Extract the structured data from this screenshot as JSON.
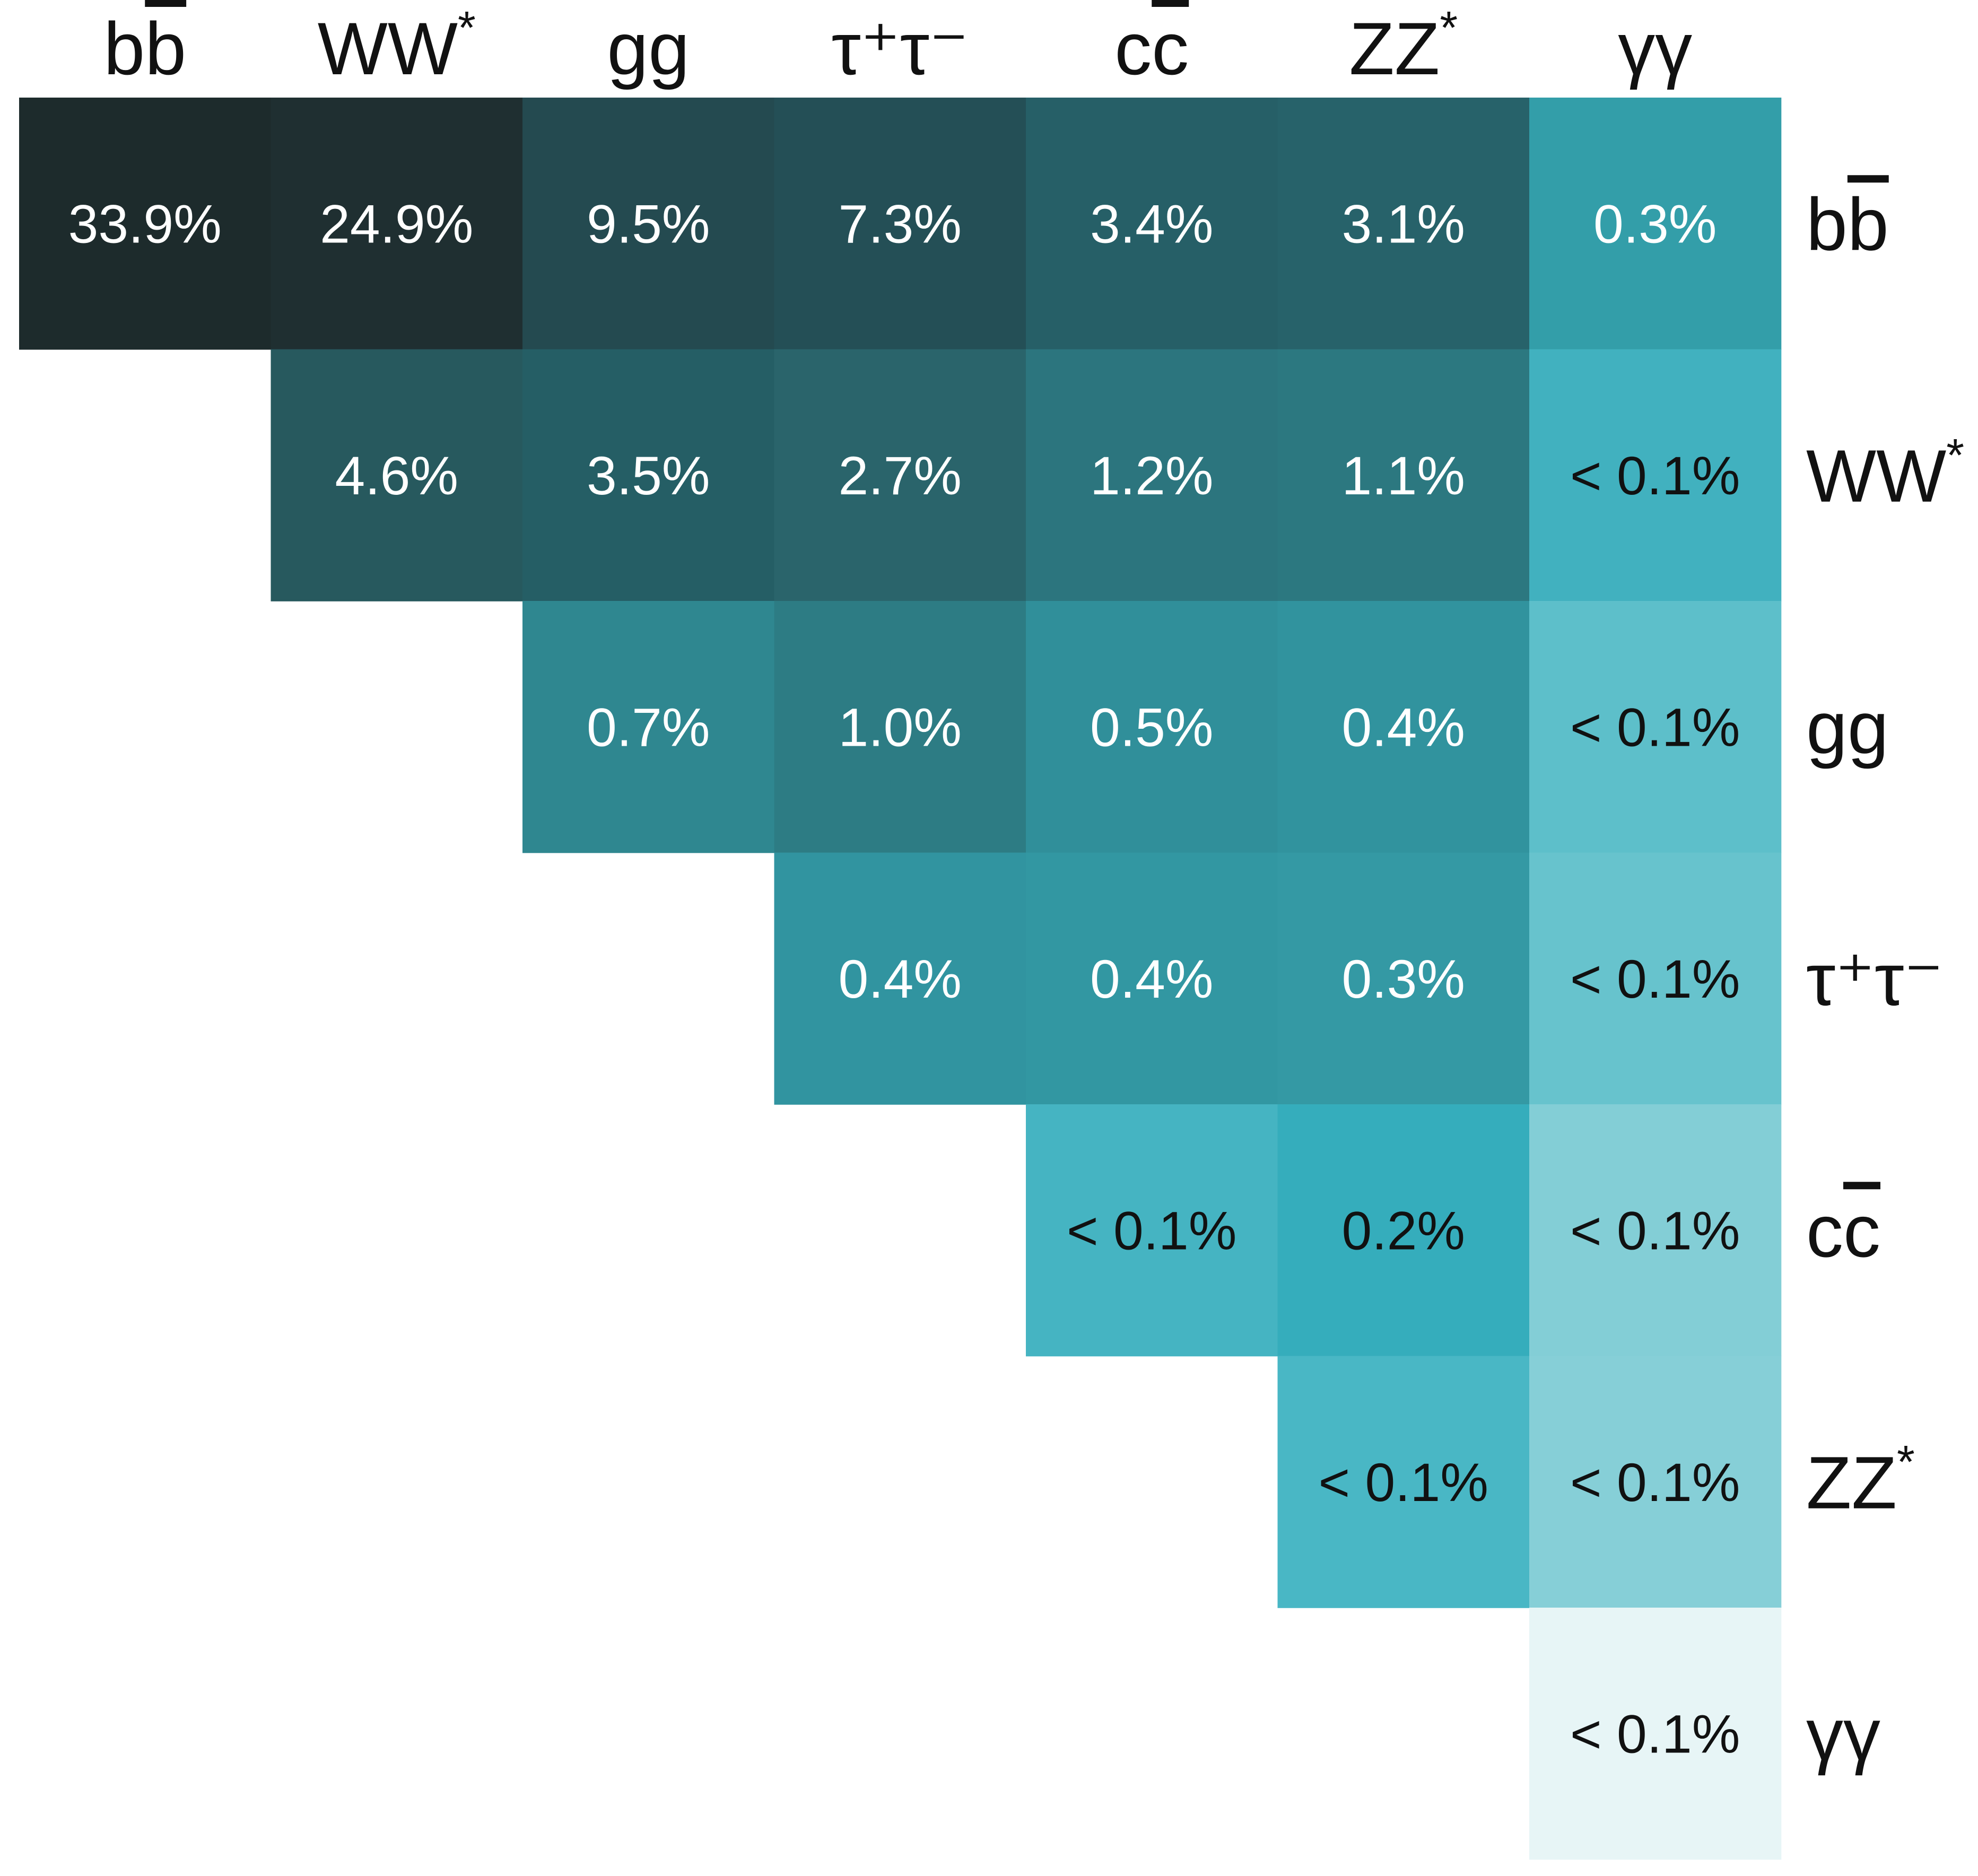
{
  "chart_data": {
    "type": "heatmap",
    "title": "",
    "xlabel": "",
    "ylabel": "",
    "grid": false,
    "legend": "none",
    "categories": [
      {
        "id": "bb",
        "base": "b",
        "bar_base": "b",
        "mark": ""
      },
      {
        "id": "ww",
        "base": "WW",
        "bar_base": "",
        "mark": "*"
      },
      {
        "id": "gg",
        "base": "gg",
        "bar_base": "",
        "mark": ""
      },
      {
        "id": "tautau",
        "base": "τ⁺τ⁻",
        "bar_base": "",
        "mark": ""
      },
      {
        "id": "cc",
        "base": "c",
        "bar_base": "c",
        "mark": ""
      },
      {
        "id": "zz",
        "base": "ZZ",
        "bar_base": "",
        "mark": "*"
      },
      {
        "id": "gammagamma",
        "base": "γγ",
        "bar_base": "",
        "mark": ""
      }
    ],
    "cells": [
      {
        "row": 0,
        "col": 0,
        "label": "33.9%",
        "value": 33.9,
        "color": "#1d2b2c",
        "text_color": "#ffffff"
      },
      {
        "row": 0,
        "col": 1,
        "label": "24.9%",
        "value": 24.9,
        "color": "#1f2f31",
        "text_color": "#ffffff"
      },
      {
        "row": 0,
        "col": 2,
        "label": "9.5%",
        "value": 9.5,
        "color": "#244a50",
        "text_color": "#ffffff"
      },
      {
        "row": 0,
        "col": 3,
        "label": "7.3%",
        "value": 7.3,
        "color": "#244f56",
        "text_color": "#ffffff"
      },
      {
        "row": 0,
        "col": 4,
        "label": "3.4%",
        "value": 3.4,
        "color": "#265f67",
        "text_color": "#ffffff"
      },
      {
        "row": 0,
        "col": 5,
        "label": "3.1%",
        "value": 3.1,
        "color": "#27626a",
        "text_color": "#ffffff"
      },
      {
        "row": 0,
        "col": 6,
        "label": "0.3%",
        "value": 0.3,
        "color": "#339ea9",
        "text_color": "#ffffff"
      },
      {
        "row": 1,
        "col": 1,
        "label": "4.6%",
        "value": 4.6,
        "color": "#27595e",
        "text_color": "#ffffff"
      },
      {
        "row": 1,
        "col": 2,
        "label": "3.5%",
        "value": 3.5,
        "color": "#255e65",
        "text_color": "#ffffff"
      },
      {
        "row": 1,
        "col": 3,
        "label": "2.7%",
        "value": 2.7,
        "color": "#2a646b",
        "text_color": "#ffffff"
      },
      {
        "row": 1,
        "col": 4,
        "label": "1.2%",
        "value": 1.2,
        "color": "#2c757e",
        "text_color": "#ffffff"
      },
      {
        "row": 1,
        "col": 5,
        "label": "1.1%",
        "value": 1.1,
        "color": "#2c7880",
        "text_color": "#ffffff"
      },
      {
        "row": 1,
        "col": 6,
        "label": "< 0.1%",
        "value": 0.1,
        "color": "#41b1bf",
        "text_color": "#111111"
      },
      {
        "row": 2,
        "col": 2,
        "label": "0.7%",
        "value": 0.7,
        "color": "#2f8790",
        "text_color": "#ffffff"
      },
      {
        "row": 2,
        "col": 3,
        "label": "1.0%",
        "value": 1.0,
        "color": "#2d7c84",
        "text_color": "#ffffff"
      },
      {
        "row": 2,
        "col": 4,
        "label": "0.5%",
        "value": 0.5,
        "color": "#308f9a",
        "text_color": "#ffffff"
      },
      {
        "row": 2,
        "col": 5,
        "label": "0.4%",
        "value": 0.4,
        "color": "#31939e",
        "text_color": "#ffffff"
      },
      {
        "row": 2,
        "col": 6,
        "label": "< 0.1%",
        "value": 0.1,
        "color": "#5dbfca",
        "text_color": "#111111"
      },
      {
        "row": 3,
        "col": 3,
        "label": "0.4%",
        "value": 0.4,
        "color": "#3194a0",
        "text_color": "#ffffff"
      },
      {
        "row": 3,
        "col": 4,
        "label": "0.4%",
        "value": 0.4,
        "color": "#3297a2",
        "text_color": "#ffffff"
      },
      {
        "row": 3,
        "col": 5,
        "label": "0.3%",
        "value": 0.3,
        "color": "#3499a4",
        "text_color": "#ffffff"
      },
      {
        "row": 3,
        "col": 6,
        "label": "< 0.1%",
        "value": 0.1,
        "color": "#67c3cd",
        "text_color": "#111111"
      },
      {
        "row": 4,
        "col": 4,
        "label": "< 0.1%",
        "value": 0.1,
        "color": "#45b4c2",
        "text_color": "#111111"
      },
      {
        "row": 4,
        "col": 5,
        "label": "0.2%",
        "value": 0.2,
        "color": "#35adbc",
        "text_color": "#111111"
      },
      {
        "row": 4,
        "col": 6,
        "label": "< 0.1%",
        "value": 0.1,
        "color": "#83ced6",
        "text_color": "#111111"
      },
      {
        "row": 5,
        "col": 5,
        "label": "< 0.1%",
        "value": 0.1,
        "color": "#49b7c5",
        "text_color": "#111111"
      },
      {
        "row": 5,
        "col": 6,
        "label": "< 0.1%",
        "value": 0.1,
        "color": "#86cfd7",
        "text_color": "#111111"
      },
      {
        "row": 6,
        "col": 6,
        "label": "< 0.1%",
        "value": 0.1,
        "color": "#e7f5f6",
        "text_color": "#111111"
      }
    ]
  }
}
